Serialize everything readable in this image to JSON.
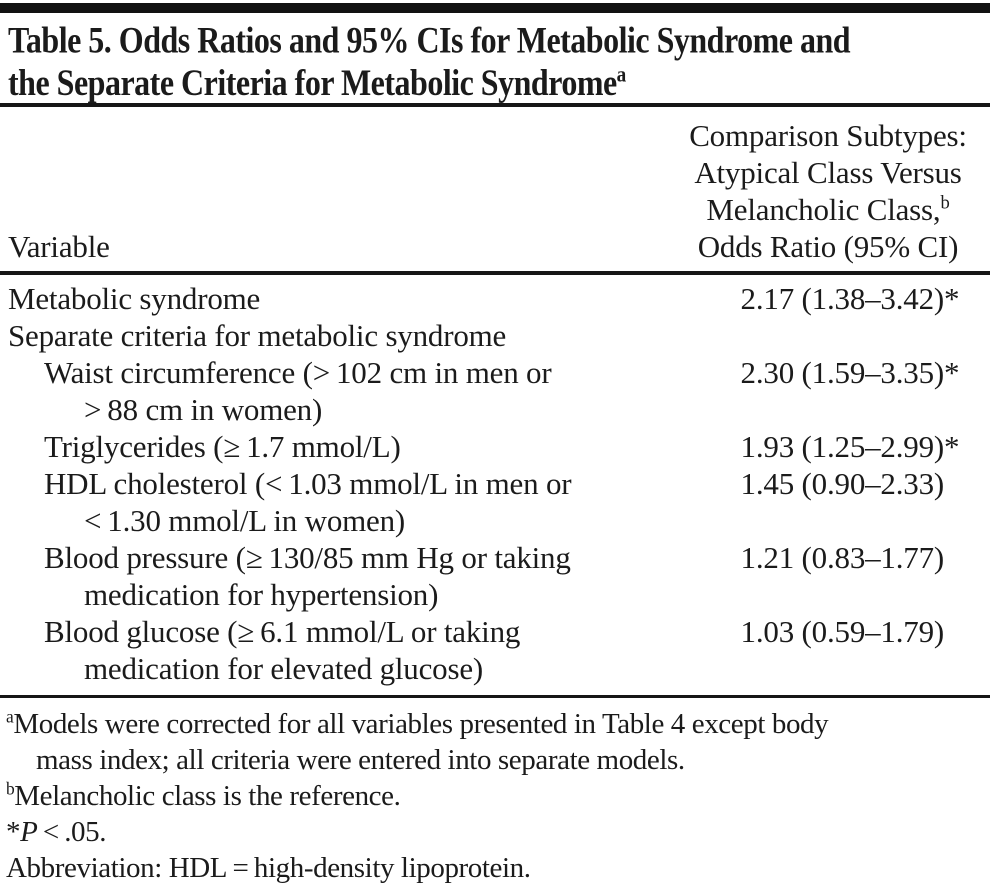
{
  "table": {
    "title": {
      "line1": "Table 5. Odds Ratios and 95% CIs for Metabolic Syndrome and",
      "line2": "the Separate Criteria for Metabolic Syndrome",
      "superscript": "a"
    },
    "header": {
      "variable_label": "Variable",
      "comparison_lines": {
        "line1": "Comparison Subtypes:",
        "line2": "Atypical Class Versus",
        "line3": "Melancholic Class,",
        "line3_superscript": "b",
        "line4": "Odds Ratio (95% CI)"
      }
    },
    "rows": [
      {
        "lines": [
          "Metabolic syndrome"
        ],
        "value": "2.17 (1.38–3.42)",
        "star": "*"
      },
      {
        "lines": [
          "Separate criteria for metabolic syndrome"
        ],
        "value": "",
        "star": ""
      },
      {
        "lines": [
          "Waist circumference (> 102 cm in men or",
          "> 88 cm in women)"
        ],
        "value": "2.30 (1.59–3.35)",
        "star": "*"
      },
      {
        "lines": [
          "Triglycerides (≥ 1.7 mmol/L)"
        ],
        "value": "1.93 (1.25–2.99)",
        "star": "*"
      },
      {
        "lines": [
          "HDL cholesterol (< 1.03 mmol/L in men or",
          "< 1.30 mmol/L in women)"
        ],
        "value": "1.45 (0.90–2.33)",
        "star": ""
      },
      {
        "lines": [
          "Blood pressure (≥ 130/85 mm Hg or taking",
          "medication for hypertension)"
        ],
        "value": "1.21 (0.83–1.77)",
        "star": ""
      },
      {
        "lines": [
          "Blood glucose (≥ 6.1 mmol/L or taking",
          "medication for elevated glucose)"
        ],
        "value": "1.03 (0.59–1.79)",
        "star": ""
      }
    ],
    "footnotes": {
      "a": {
        "sup": "a",
        "line1": "Models were corrected for all variables presented in Table 4 except body",
        "line2": "mass index; all criteria were entered into separate models."
      },
      "b": {
        "sup": "b",
        "text": "Melancholic class is the reference."
      },
      "pvalue": {
        "star": "*",
        "p": "P",
        "rest": " < .05."
      },
      "abbreviation": {
        "text": "Abbreviation: HDL = high-density lipoprotein."
      }
    }
  }
}
